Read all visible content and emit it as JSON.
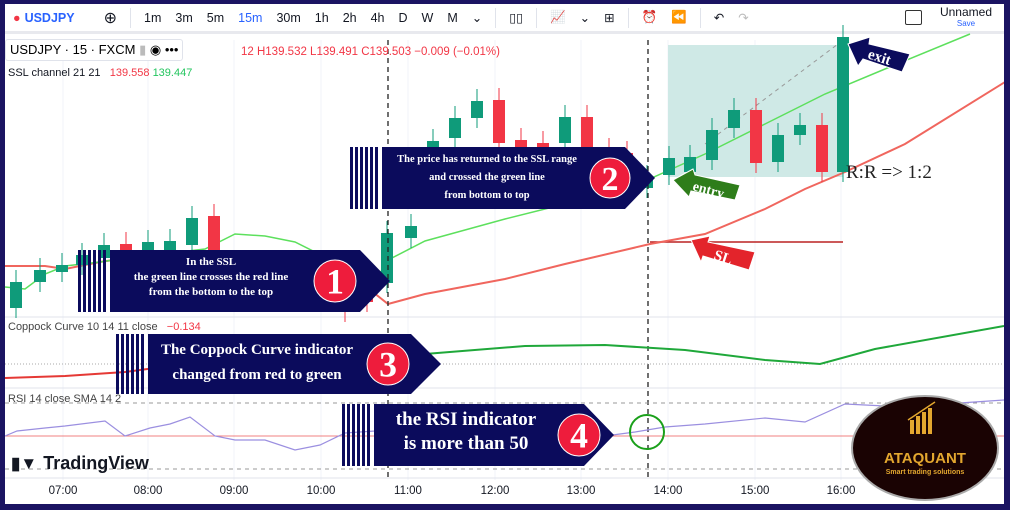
{
  "toolbar": {
    "symbol": "USDJPY",
    "intervals": [
      "1m",
      "3m",
      "5m",
      "15m",
      "30m",
      "1h",
      "2h",
      "4h",
      "D",
      "W",
      "M"
    ],
    "active_interval": "15m",
    "layout_name": "Unnamed",
    "save_label": "Save"
  },
  "legend": {
    "symbol_line": "USDJPY · 15 · FXCM",
    "ohlc": "12 H139.532 L139.491 C139.503 −0.009 (−0.01%)",
    "ssl_label": "SSL channel 21 21",
    "ssl_red": "139.558",
    "ssl_green": "139.447",
    "coppock_label": "Coppock Curve 10 14 11 close",
    "coppock_value": "−0.134",
    "rsi_label": "RSI 14 close SMA 14 2"
  },
  "annotations": {
    "a1": {
      "number": "1",
      "lines": [
        "In the SSL",
        "the green line crosses the red line",
        "from the bottom to the top"
      ]
    },
    "a2": {
      "number": "2",
      "lines": [
        "The price has returned to the SSL range",
        "and crossed the green line",
        "from bottom to top"
      ]
    },
    "a3": {
      "number": "3",
      "lines": [
        "The Coppock Curve indicator",
        "changed from red to green"
      ]
    },
    "a4": {
      "number": "4",
      "lines": [
        "the RSI indicator",
        "is more than 50"
      ]
    },
    "entry": "entry",
    "sl": "SL",
    "exit": "exit",
    "rr": "R:R => 1:2"
  },
  "time_axis": [
    "07:00",
    "08:00",
    "09:00",
    "10:00",
    "11:00",
    "12:00",
    "13:00",
    "14:00",
    "15:00",
    "16:00"
  ],
  "branding": {
    "tradingview": "TradingView",
    "logo_name": "ATAQUANT",
    "logo_tagline": "Smart trading solutions"
  },
  "colors": {
    "bull": "#0f9b7a",
    "bear": "#f23645",
    "ssl_green": "#5de05d",
    "ssl_red": "#f0665e",
    "banner": "#0b0b5c",
    "badge": "#ee1c3c"
  }
}
